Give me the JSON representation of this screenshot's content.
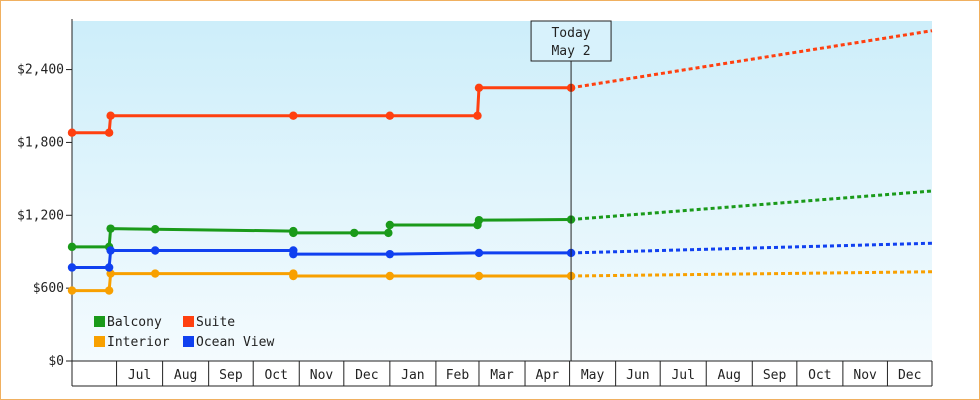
{
  "chart_data": {
    "type": "line",
    "title": "",
    "xlabel": "",
    "ylabel": "",
    "ylim": [
      0,
      2800
    ],
    "y_ticks": [
      {
        "value": 0,
        "label": "$0"
      },
      {
        "value": 600,
        "label": "$600"
      },
      {
        "value": 1200,
        "label": "$1,200"
      },
      {
        "value": 1800,
        "label": "$1,800"
      },
      {
        "value": 2400,
        "label": "$2,400"
      }
    ],
    "x_domain": [
      "2023-06-01",
      "2024-12-31"
    ],
    "x_ticks": [
      "Jul",
      "Aug",
      "Sep",
      "Oct",
      "Nov",
      "Dec",
      "Jan",
      "Feb",
      "Mar",
      "Apr",
      "May",
      "Jun",
      "Jul",
      "Aug",
      "Sep",
      "Oct",
      "Nov",
      "Dec"
    ],
    "today": {
      "date": "2024-05-02",
      "line1": "Today",
      "line2": "May 2"
    },
    "legend": {
      "placement": "bottom-left"
    },
    "background": {
      "top": "#cdeefa",
      "bottom": "#f4fbfe"
    },
    "series": [
      {
        "name": "Balcony",
        "color": "#1a9a1a",
        "actual": [
          [
            "2023-06-01",
            940
          ],
          [
            "2023-06-26",
            940
          ],
          [
            "2023-06-27",
            1090
          ],
          [
            "2023-07-27",
            1085
          ],
          [
            "2023-10-28",
            1070
          ],
          [
            "2023-10-28",
            1055
          ],
          [
            "2023-12-08",
            1055
          ],
          [
            "2023-12-31",
            1055
          ],
          [
            "2024-01-01",
            1120
          ],
          [
            "2024-02-29",
            1120
          ],
          [
            "2024-03-01",
            1160
          ],
          [
            "2024-05-02",
            1165
          ]
        ],
        "projected": [
          [
            "2024-05-02",
            1165
          ],
          [
            "2024-12-31",
            1400
          ]
        ]
      },
      {
        "name": "Suite",
        "color": "#ff4010",
        "actual": [
          [
            "2023-06-01",
            1880
          ],
          [
            "2023-06-26",
            1880
          ],
          [
            "2023-06-27",
            2020
          ],
          [
            "2023-10-28",
            2020
          ],
          [
            "2024-01-01",
            2020
          ],
          [
            "2024-02-29",
            2020
          ],
          [
            "2024-03-01",
            2250
          ],
          [
            "2024-05-02",
            2250
          ]
        ],
        "projected": [
          [
            "2024-05-02",
            2250
          ],
          [
            "2024-12-31",
            2720
          ]
        ]
      },
      {
        "name": "Interior",
        "color": "#f8a000",
        "actual": [
          [
            "2023-06-01",
            580
          ],
          [
            "2023-06-26",
            580
          ],
          [
            "2023-06-27",
            720
          ],
          [
            "2023-07-27",
            720
          ],
          [
            "2023-10-28",
            720
          ],
          [
            "2023-10-28",
            700
          ],
          [
            "2024-01-01",
            700
          ],
          [
            "2024-03-01",
            700
          ],
          [
            "2024-05-02",
            700
          ]
        ],
        "projected": [
          [
            "2024-05-02",
            700
          ],
          [
            "2024-12-31",
            735
          ]
        ]
      },
      {
        "name": "Ocean View",
        "color": "#1040f0",
        "actual": [
          [
            "2023-06-01",
            770
          ],
          [
            "2023-06-26",
            770
          ],
          [
            "2023-06-27",
            910
          ],
          [
            "2023-07-27",
            910
          ],
          [
            "2023-10-28",
            910
          ],
          [
            "2023-10-28",
            880
          ],
          [
            "2024-01-01",
            880
          ],
          [
            "2024-03-01",
            890
          ],
          [
            "2024-05-02",
            890
          ]
        ],
        "projected": [
          [
            "2024-05-02",
            890
          ],
          [
            "2024-12-31",
            970
          ]
        ]
      }
    ]
  }
}
